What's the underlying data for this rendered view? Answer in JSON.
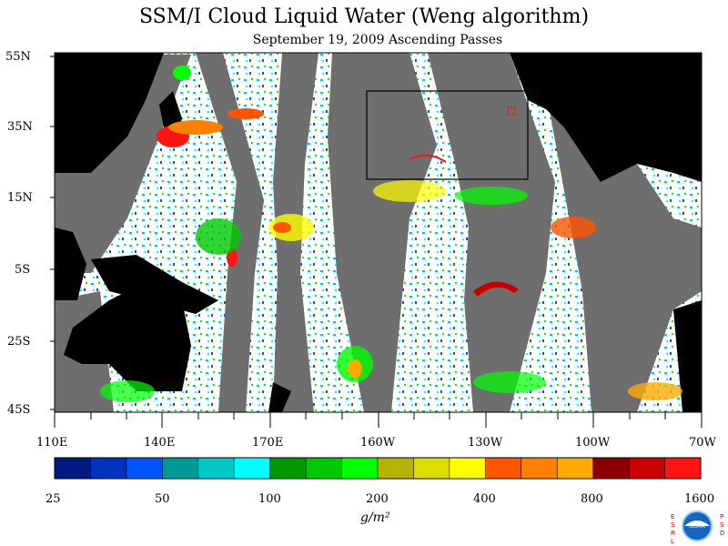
{
  "title": "SSM/I Cloud Liquid Water (Weng algorithm)",
  "subtitle": "September 19, 2009  Ascending Passes",
  "lat_labels": [
    "55N",
    "35N",
    "15N",
    "5S",
    "25S",
    "45S"
  ],
  "lon_labels": [
    "110E",
    "140E",
    "170E",
    "160W",
    "130W",
    "100W",
    "70W"
  ],
  "colorbar": {
    "colors": [
      "#001a80",
      "#0033bb",
      "#0055ff",
      "#009999",
      "#00c8c8",
      "#00ffff",
      "#009900",
      "#00c800",
      "#00ff00",
      "#b4b400",
      "#dcdc00",
      "#ffff00",
      "#ff5500",
      "#ff7f00",
      "#ffaa00",
      "#8b0000",
      "#c80000",
      "#ff1414"
    ],
    "labels": [
      "25",
      "50",
      "100",
      "200",
      "400",
      "800",
      "1600"
    ]
  },
  "units": "g/m²",
  "logo": {
    "left_text": "ESRL",
    "right_text": "PSD",
    "center_text": "NOAA"
  },
  "legend_colors": {
    "land": "#000000",
    "no_data": "#6e6e6e",
    "clear": "#ffffff"
  }
}
